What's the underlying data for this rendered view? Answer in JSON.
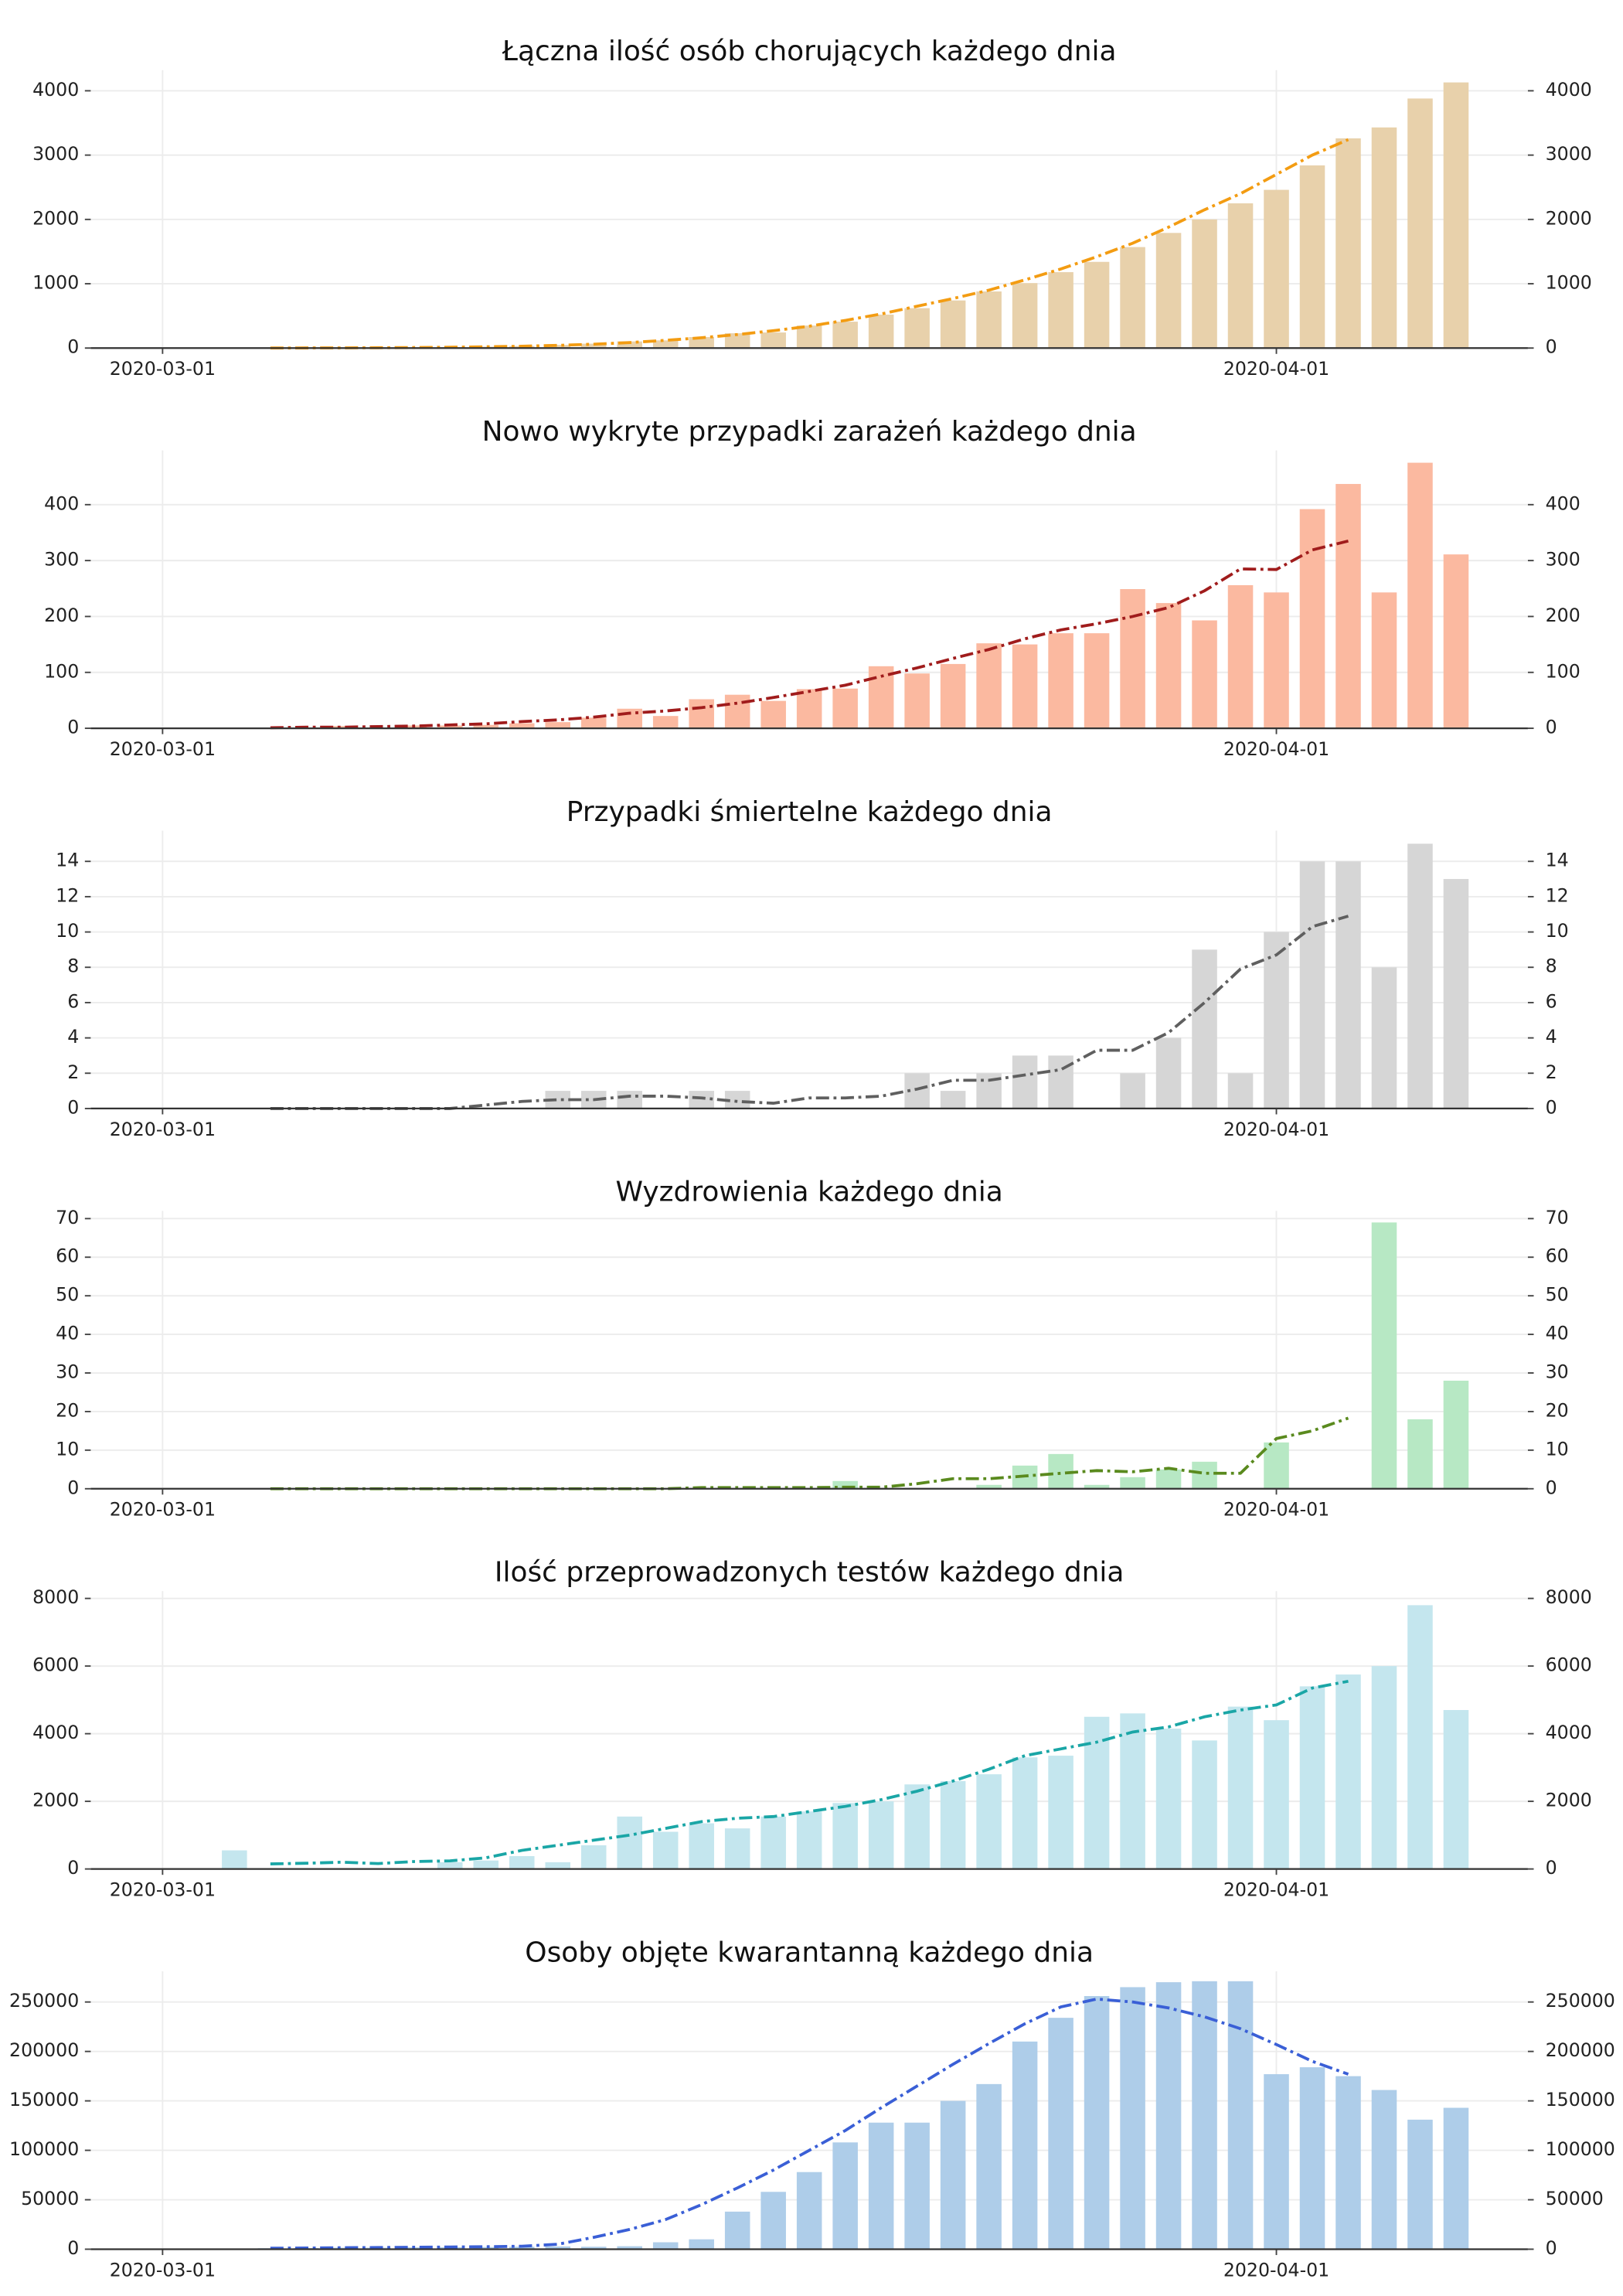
{
  "chart_data": [
    {
      "type": "bar",
      "title": "Łączna ilość osób chorujących każdego dnia",
      "x": [
        "2020-03-01",
        "2020-03-02",
        "2020-03-03",
        "2020-03-04",
        "2020-03-05",
        "2020-03-06",
        "2020-03-07",
        "2020-03-08",
        "2020-03-09",
        "2020-03-10",
        "2020-03-11",
        "2020-03-12",
        "2020-03-13",
        "2020-03-14",
        "2020-03-15",
        "2020-03-16",
        "2020-03-17",
        "2020-03-18",
        "2020-03-19",
        "2020-03-20",
        "2020-03-21",
        "2020-03-22",
        "2020-03-23",
        "2020-03-24",
        "2020-03-25",
        "2020-03-26",
        "2020-03-27",
        "2020-03-28",
        "2020-03-29",
        "2020-03-30",
        "2020-03-31",
        "2020-04-01",
        "2020-04-02",
        "2020-04-03",
        "2020-04-04",
        "2020-04-05",
        "2020-04-06"
      ],
      "values": [
        0,
        0,
        0,
        1,
        1,
        5,
        6,
        11,
        16,
        22,
        31,
        49,
        68,
        103,
        119,
        171,
        230,
        242,
        350,
        410,
        520,
        620,
        740,
        880,
        1010,
        1180,
        1340,
        1570,
        1790,
        2000,
        2250,
        2460,
        2840,
        3260,
        3430,
        3880,
        4130
      ],
      "line_values": [
        null,
        null,
        null,
        1,
        2,
        3,
        5,
        8,
        13,
        20,
        28,
        42,
        60,
        85,
        120,
        160,
        210,
        270,
        340,
        430,
        530,
        650,
        770,
        900,
        1060,
        1230,
        1420,
        1630,
        1880,
        2150,
        2400,
        2700,
        3000,
        3240,
        null,
        null,
        null
      ],
      "color": "#e8d1ab",
      "line_color": "#f39c12",
      "xlim": [
        "2020-02-28",
        "2020-04-08"
      ],
      "xticks": [
        "2020-03-01",
        "2020-04-01"
      ],
      "ylim": [
        0,
        4320
      ],
      "yticks": [
        0,
        1000,
        2000,
        3000,
        4000
      ],
      "grid": true
    },
    {
      "type": "bar",
      "title": "Nowo wykryte przypadki zarażeń każdego dnia",
      "x": [
        "2020-03-01",
        "2020-03-02",
        "2020-03-03",
        "2020-03-04",
        "2020-03-05",
        "2020-03-06",
        "2020-03-07",
        "2020-03-08",
        "2020-03-09",
        "2020-03-10",
        "2020-03-11",
        "2020-03-12",
        "2020-03-13",
        "2020-03-14",
        "2020-03-15",
        "2020-03-16",
        "2020-03-17",
        "2020-03-18",
        "2020-03-19",
        "2020-03-20",
        "2020-03-21",
        "2020-03-22",
        "2020-03-23",
        "2020-03-24",
        "2020-03-25",
        "2020-03-26",
        "2020-03-27",
        "2020-03-28",
        "2020-03-29",
        "2020-03-30",
        "2020-03-31",
        "2020-04-01",
        "2020-04-02",
        "2020-04-03",
        "2020-04-04",
        "2020-04-05",
        "2020-04-06"
      ],
      "values": [
        0,
        0,
        0,
        1,
        0,
        4,
        1,
        5,
        5,
        6,
        9,
        11,
        19,
        35,
        22,
        52,
        60,
        49,
        70,
        71,
        111,
        98,
        115,
        152,
        150,
        170,
        170,
        249,
        224,
        193,
        256,
        243,
        392,
        437,
        243,
        475,
        311
      ],
      "line_values": [
        null,
        null,
        null,
        1,
        2,
        2,
        3,
        4,
        6,
        8,
        12,
        15,
        20,
        27,
        31,
        37,
        45,
        55,
        66,
        77,
        93,
        108,
        125,
        141,
        160,
        176,
        187,
        200,
        216,
        246,
        285,
        284,
        319,
        335,
        null,
        null,
        null
      ],
      "color": "#fbb9a0",
      "line_color": "#a01c1c",
      "xlim": [
        "2020-02-28",
        "2020-04-08"
      ],
      "xticks": [
        "2020-03-01",
        "2020-04-01"
      ],
      "ylim": [
        0,
        497
      ],
      "yticks": [
        0,
        100,
        200,
        300,
        400
      ],
      "grid": true
    },
    {
      "type": "bar",
      "title": "Przypadki śmiertelne każdego dnia",
      "x": [
        "2020-03-01",
        "2020-03-02",
        "2020-03-03",
        "2020-03-04",
        "2020-03-05",
        "2020-03-06",
        "2020-03-07",
        "2020-03-08",
        "2020-03-09",
        "2020-03-10",
        "2020-03-11",
        "2020-03-12",
        "2020-03-13",
        "2020-03-14",
        "2020-03-15",
        "2020-03-16",
        "2020-03-17",
        "2020-03-18",
        "2020-03-19",
        "2020-03-20",
        "2020-03-21",
        "2020-03-22",
        "2020-03-23",
        "2020-03-24",
        "2020-03-25",
        "2020-03-26",
        "2020-03-27",
        "2020-03-28",
        "2020-03-29",
        "2020-03-30",
        "2020-03-31",
        "2020-04-01",
        "2020-04-02",
        "2020-04-03",
        "2020-04-04",
        "2020-04-05",
        "2020-04-06"
      ],
      "values": [
        0,
        0,
        0,
        0,
        0,
        0,
        0,
        0,
        0,
        0,
        0,
        1,
        1,
        1,
        0,
        1,
        1,
        0,
        0,
        0,
        0,
        2,
        1,
        2,
        3,
        3,
        0,
        2,
        4,
        9,
        2,
        10,
        14,
        14,
        8,
        15,
        13
      ],
      "line_values": [
        null,
        null,
        null,
        0,
        0,
        0,
        0,
        0,
        0,
        0.2,
        0.4,
        0.5,
        0.5,
        0.7,
        0.7,
        0.6,
        0.4,
        0.3,
        0.6,
        0.6,
        0.7,
        1.1,
        1.6,
        1.6,
        1.9,
        2.2,
        3.3,
        3.3,
        4.3,
        6,
        7.9,
        8.7,
        10.3,
        10.9,
        null,
        null,
        null
      ],
      "color": "#d6d6d6",
      "line_color": "#5f5f5f",
      "xlim": [
        "2020-02-28",
        "2020-04-08"
      ],
      "xticks": [
        "2020-03-01",
        "2020-04-01"
      ],
      "ylim": [
        0,
        15.74
      ],
      "yticks": [
        0,
        2,
        4,
        6,
        8,
        10,
        12,
        14
      ],
      "grid": true
    },
    {
      "type": "bar",
      "title": "Wyzdrowienia każdego dnia",
      "x": [
        "2020-03-01",
        "2020-03-02",
        "2020-03-03",
        "2020-03-04",
        "2020-03-05",
        "2020-03-06",
        "2020-03-07",
        "2020-03-08",
        "2020-03-09",
        "2020-03-10",
        "2020-03-11",
        "2020-03-12",
        "2020-03-13",
        "2020-03-14",
        "2020-03-15",
        "2020-03-16",
        "2020-03-17",
        "2020-03-18",
        "2020-03-19",
        "2020-03-20",
        "2020-03-21",
        "2020-03-22",
        "2020-03-23",
        "2020-03-24",
        "2020-03-25",
        "2020-03-26",
        "2020-03-27",
        "2020-03-28",
        "2020-03-29",
        "2020-03-30",
        "2020-03-31",
        "2020-04-01",
        "2020-04-02",
        "2020-04-03",
        "2020-04-04",
        "2020-04-05",
        "2020-04-06"
      ],
      "values": [
        0,
        0,
        0,
        0,
        0,
        0,
        0,
        0,
        0,
        0,
        0,
        0,
        0,
        0,
        0,
        0,
        0,
        0,
        0,
        2,
        0,
        0,
        0,
        1,
        6,
        9,
        1,
        3,
        5,
        7,
        0,
        12,
        0,
        0,
        69,
        18,
        28
      ],
      "line_values": [
        null,
        null,
        null,
        0,
        0,
        0,
        0,
        0,
        0,
        0,
        0,
        0,
        0,
        0,
        0,
        0.3,
        0.3,
        0.3,
        0.3,
        0.4,
        0.4,
        1.3,
        2.6,
        2.6,
        3.3,
        4,
        4.7,
        4.4,
        5.3,
        4,
        4,
        13,
        15,
        18.3,
        null,
        null,
        null
      ],
      "color": "#b7e8c4",
      "line_color": "#5a8a1e",
      "xlim": [
        "2020-02-28",
        "2020-04-08"
      ],
      "xticks": [
        "2020-03-01",
        "2020-04-01"
      ],
      "ylim": [
        0,
        72
      ],
      "yticks": [
        0,
        10,
        20,
        30,
        40,
        50,
        60,
        70
      ],
      "grid": true
    },
    {
      "type": "bar",
      "title": "Ilość przeprowadzonych testów każdego dnia",
      "x": [
        "2020-03-01",
        "2020-03-02",
        "2020-03-03",
        "2020-03-04",
        "2020-03-05",
        "2020-03-06",
        "2020-03-07",
        "2020-03-08",
        "2020-03-09",
        "2020-03-10",
        "2020-03-11",
        "2020-03-12",
        "2020-03-13",
        "2020-03-14",
        "2020-03-15",
        "2020-03-16",
        "2020-03-17",
        "2020-03-18",
        "2020-03-19",
        "2020-03-20",
        "2020-03-21",
        "2020-03-22",
        "2020-03-23",
        "2020-03-24",
        "2020-03-25",
        "2020-03-26",
        "2020-03-27",
        "2020-03-28",
        "2020-03-29",
        "2020-03-30",
        "2020-03-31",
        "2020-04-01",
        "2020-04-02",
        "2020-04-03",
        "2020-04-04",
        "2020-04-05",
        "2020-04-06"
      ],
      "values": [
        0,
        0,
        550,
        0,
        0,
        0,
        0,
        0,
        200,
        250,
        380,
        200,
        700,
        1550,
        1100,
        1350,
        1200,
        1550,
        1700,
        1950,
        2000,
        2500,
        2600,
        2800,
        3300,
        3350,
        4500,
        4600,
        4150,
        3800,
        4800,
        4400,
        5400,
        5750,
        6000,
        7800,
        4700
      ],
      "line_values": [
        null,
        null,
        null,
        150,
        170,
        200,
        160,
        220,
        240,
        330,
        550,
        700,
        850,
        1000,
        1200,
        1400,
        1500,
        1550,
        1700,
        1850,
        2050,
        2300,
        2600,
        2950,
        3350,
        3550,
        3750,
        4050,
        4200,
        4500,
        4700,
        4850,
        5350,
        5550,
        null,
        null,
        null
      ],
      "color": "#c4e6ee",
      "line_color": "#1aa6a6",
      "xlim": [
        "2020-02-28",
        "2020-04-08"
      ],
      "xticks": [
        "2020-03-01",
        "2020-04-01"
      ],
      "ylim": [
        0,
        8216
      ],
      "yticks": [
        0,
        2000,
        4000,
        6000,
        8000
      ],
      "grid": true
    },
    {
      "type": "bar",
      "title": "Osoby objęte kwarantanną każdego dnia",
      "x": [
        "2020-03-01",
        "2020-03-02",
        "2020-03-03",
        "2020-03-04",
        "2020-03-05",
        "2020-03-06",
        "2020-03-07",
        "2020-03-08",
        "2020-03-09",
        "2020-03-10",
        "2020-03-11",
        "2020-03-12",
        "2020-03-13",
        "2020-03-14",
        "2020-03-15",
        "2020-03-16",
        "2020-03-17",
        "2020-03-18",
        "2020-03-19",
        "2020-03-20",
        "2020-03-21",
        "2020-03-22",
        "2020-03-23",
        "2020-03-24",
        "2020-03-25",
        "2020-03-26",
        "2020-03-27",
        "2020-03-28",
        "2020-03-29",
        "2020-03-30",
        "2020-03-31",
        "2020-04-01",
        "2020-04-02",
        "2020-04-03",
        "2020-04-04",
        "2020-04-05",
        "2020-04-06"
      ],
      "values": [
        0,
        0,
        0,
        1000,
        1200,
        1500,
        1500,
        1800,
        2000,
        2200,
        2500,
        2800,
        2500,
        3000,
        7000,
        10000,
        38000,
        58000,
        78000,
        108000,
        128000,
        128000,
        150000,
        167000,
        210000,
        234000,
        256000,
        265000,
        270000,
        271000,
        271000,
        177000,
        184000,
        175000,
        161000,
        131000,
        143000
      ],
      "line_values": [
        null,
        null,
        null,
        1000,
        1200,
        1500,
        1700,
        2000,
        2200,
        2500,
        3000,
        5000,
        12000,
        20000,
        30000,
        45000,
        62000,
        80000,
        100000,
        120000,
        143000,
        165000,
        187000,
        208000,
        228000,
        245000,
        253000,
        250000,
        244000,
        235000,
        223000,
        207000,
        190000,
        177000,
        null,
        null,
        null
      ],
      "color": "#aecde9",
      "line_color": "#3a5fd6",
      "xlim": [
        "2020-02-28",
        "2020-04-08"
      ],
      "xticks": [
        "2020-03-01",
        "2020-04-01"
      ],
      "ylim": [
        0,
        281000
      ],
      "yticks": [
        0,
        50000,
        100000,
        150000,
        200000,
        250000
      ],
      "grid": true
    }
  ]
}
